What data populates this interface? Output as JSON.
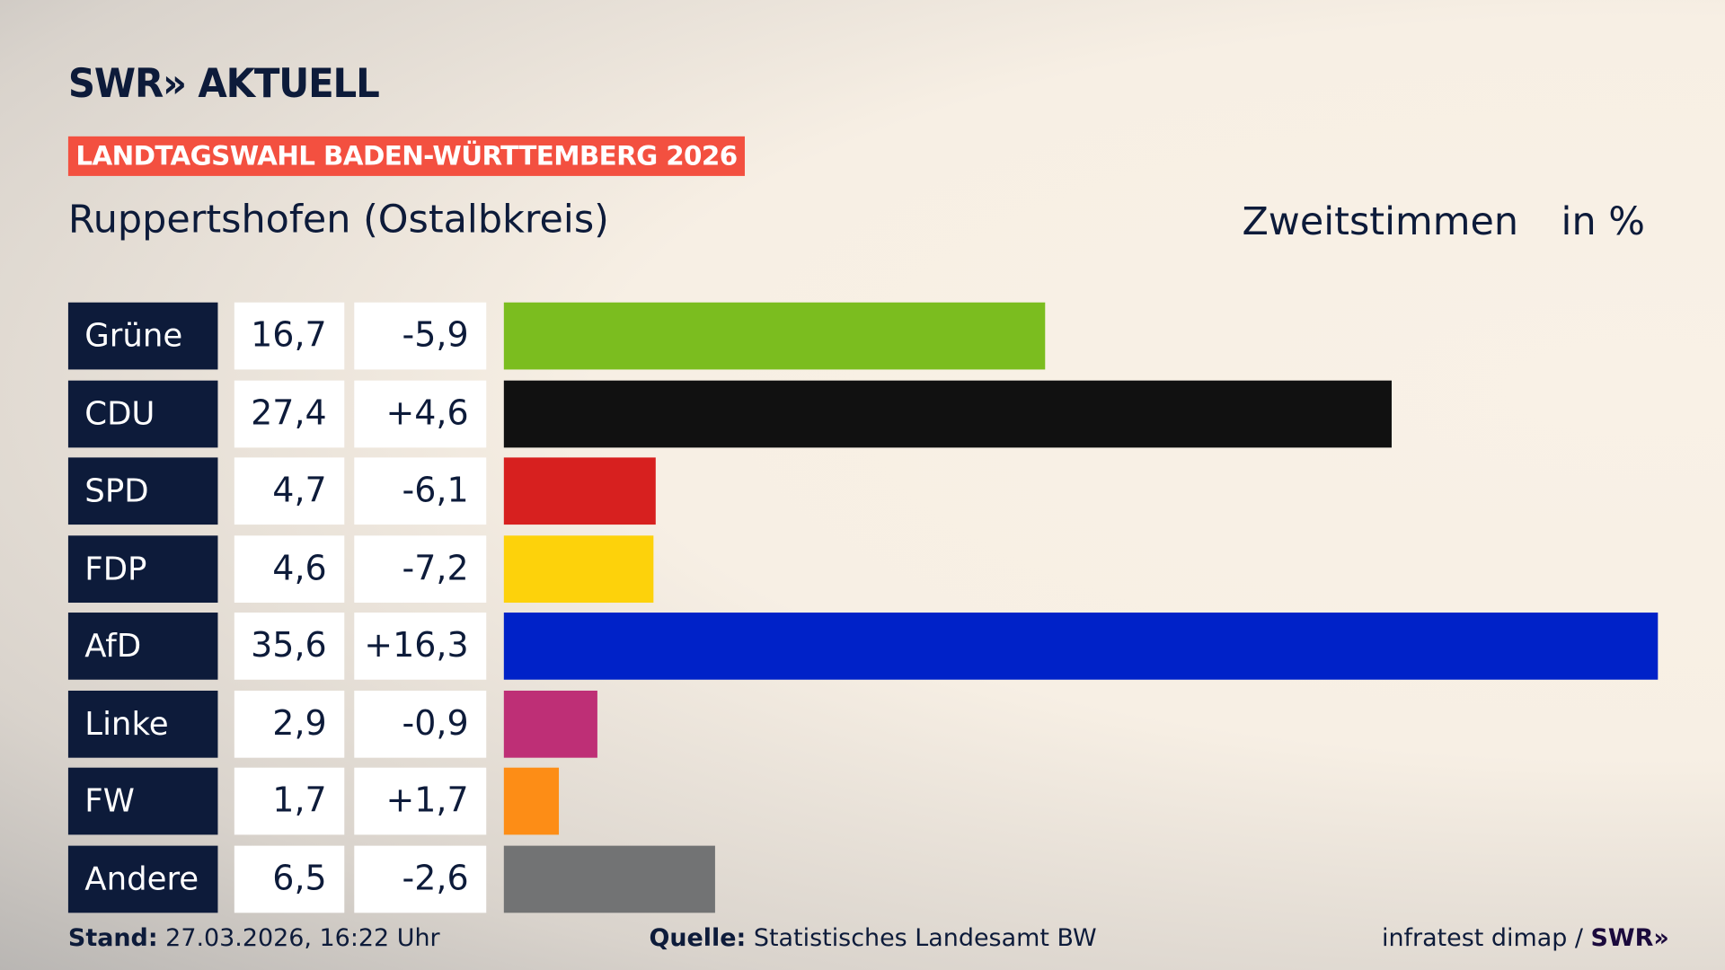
{
  "header": {
    "logo": "SWR» AKTUELL",
    "badge": "LANDTAGSWAHL BADEN-WÜRTTEMBERG 2026",
    "place": "Ruppertshofen (Ostalbkreis)",
    "vote_type": "Zweitstimmen",
    "unit": "in %"
  },
  "chart_data": {
    "type": "bar",
    "orientation": "horizontal",
    "xlim": [
      0,
      35.6
    ],
    "categories": [
      "Grüne",
      "CDU",
      "SPD",
      "FDP",
      "AfD",
      "Linke",
      "FW",
      "Andere"
    ],
    "values": [
      16.7,
      27.4,
      4.7,
      4.6,
      35.6,
      2.9,
      1.7,
      6.5
    ],
    "value_labels": [
      "16,7",
      "27,4",
      "4,7",
      "4,6",
      "35,6",
      "2,9",
      "1,7",
      "6,5"
    ],
    "diff_labels": [
      "-5,9",
      "+4,6",
      "-6,1",
      "-7,2",
      "+16,3",
      "-0,9",
      "+1,7",
      "-2,6"
    ],
    "diffs": [
      -5.9,
      4.6,
      -6.1,
      -7.2,
      16.3,
      -0.9,
      1.7,
      -2.6
    ],
    "colors": [
      "#7bbd1f",
      "#111111",
      "#d7201f",
      "#fdd20b",
      "#0022c8",
      "#be2f76",
      "#fd8d16",
      "#727374"
    ]
  },
  "footer": {
    "stand_label": "Stand:",
    "stand_value": " 27.03.2026, 16:22 Uhr",
    "source_label": "Quelle:",
    "source_value": " Statistisches Landesamt BW",
    "credit": "infratest dimap / ",
    "credit_logo": "SWR»"
  }
}
